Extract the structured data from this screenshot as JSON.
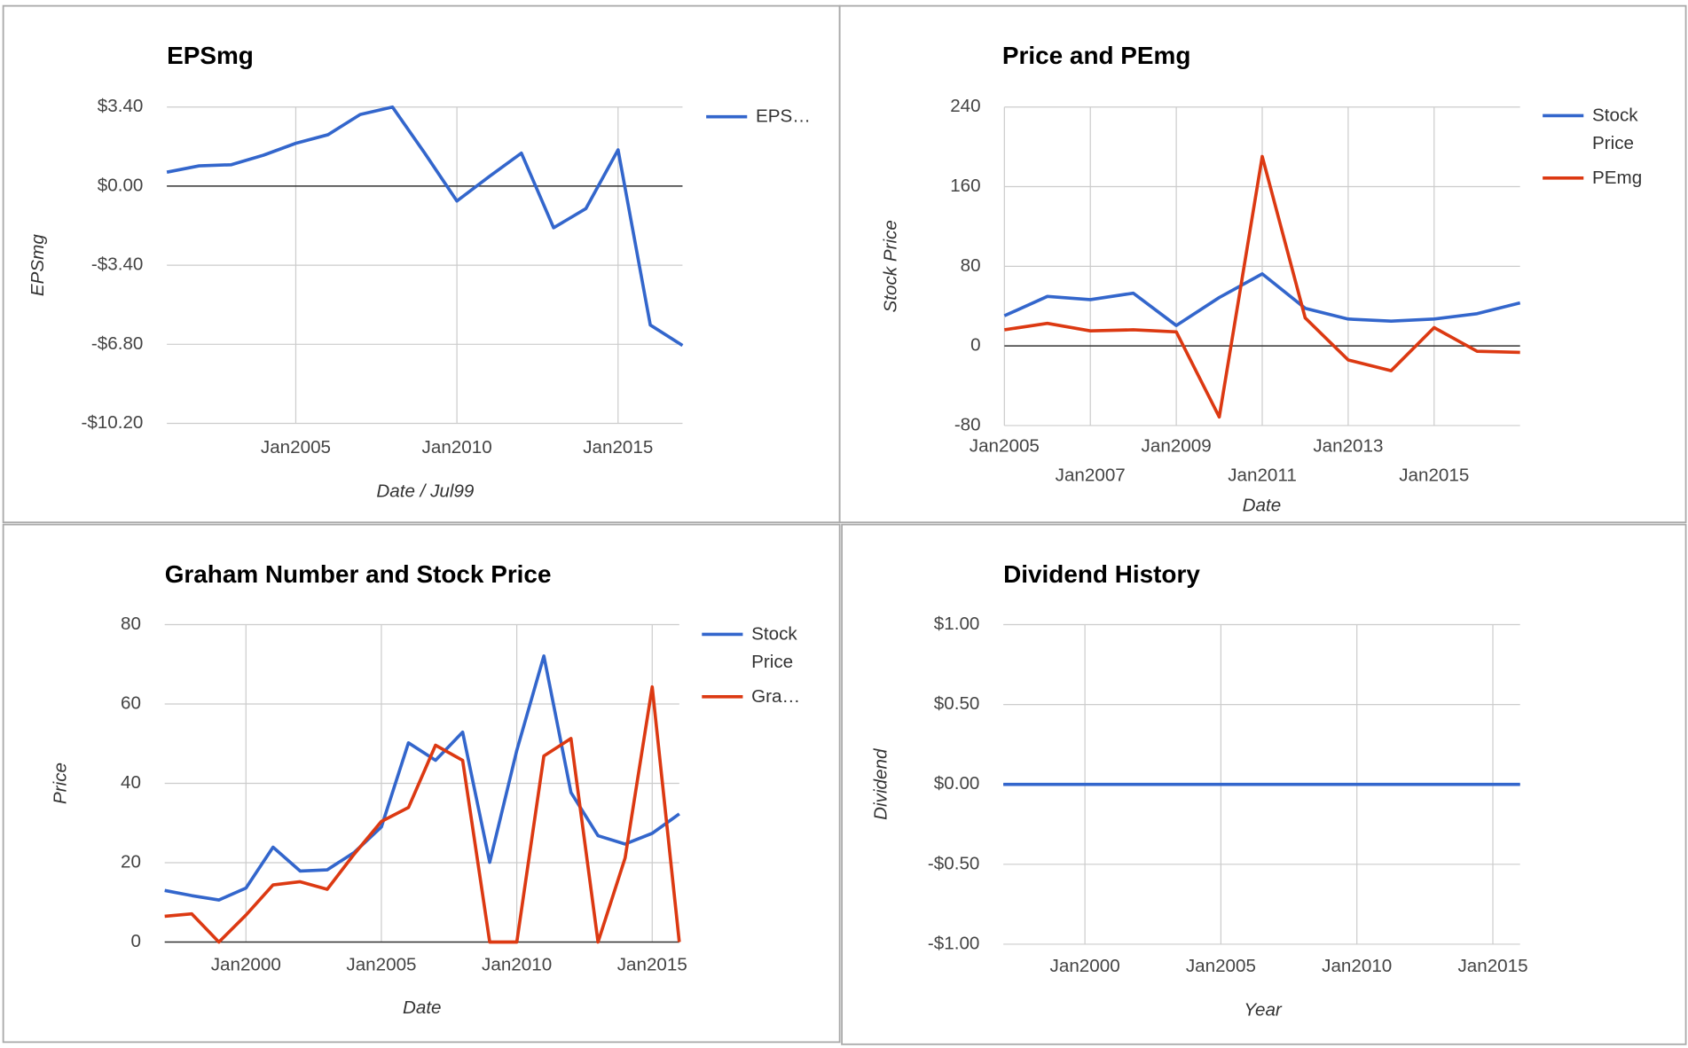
{
  "chart_data": [
    {
      "type": "line",
      "title": "EPSmg",
      "y_label": "EPSmg",
      "x_label": "Date / Jul99",
      "x": [
        2001,
        2002,
        2003,
        2004,
        2005,
        2006,
        2007,
        2008,
        2009,
        2010,
        2011,
        2012,
        2013,
        2014,
        2015,
        2016,
        2017
      ],
      "series": [
        {
          "name": "EPS…",
          "color": "#3366cc",
          "values": [
            0.6,
            0.87,
            0.92,
            1.33,
            1.84,
            2.21,
            3.08,
            3.4,
            1.42,
            -0.64,
            0.41,
            1.42,
            -1.79,
            -0.97,
            1.56,
            -5.97,
            -6.85
          ]
        }
      ],
      "xlim": [
        2001,
        2017
      ],
      "xticks": [
        {
          "value": 2005,
          "label": "Jan2005"
        },
        {
          "value": 2010,
          "label": "Jan2010"
        },
        {
          "value": 2015,
          "label": "Jan2015"
        }
      ],
      "ylim": [
        -10.2,
        3.4
      ],
      "yticks": [
        {
          "value": -10.2,
          "label": "-$10.20"
        },
        {
          "value": -6.8,
          "label": "-$6.80"
        },
        {
          "value": -3.4,
          "label": "-$3.40"
        },
        {
          "value": 0,
          "label": "$0.00"
        },
        {
          "value": 3.4,
          "label": "$3.40"
        }
      ],
      "grid": true,
      "legend": "right"
    },
    {
      "type": "line",
      "title": "Price and PEmg",
      "y_label": "Stock Price",
      "x_label": "Date",
      "x": [
        2005,
        2006,
        2007,
        2008,
        2009,
        2010,
        2011,
        2012,
        2013,
        2014,
        2015,
        2016,
        2017
      ],
      "series": [
        {
          "name": "Stock Price",
          "color": "#3366cc",
          "values": [
            30.3,
            49.7,
            46.5,
            53,
            20.5,
            48.6,
            72.4,
            37.8,
            27,
            24.9,
            27,
            32.4,
            43.2
          ]
        },
        {
          "name": "PEmg",
          "color": "#dc3912",
          "values": [
            16.2,
            22.7,
            15.1,
            16.2,
            14.1,
            -71.4,
            190.3,
            28.1,
            -14.1,
            -24.9,
            18.4,
            -5.4,
            -6.5
          ]
        }
      ],
      "xlim": [
        2005,
        2017
      ],
      "xticks": [
        {
          "value": 2005,
          "label": "Jan2005"
        },
        {
          "value": 2007,
          "label": "Jan2007"
        },
        {
          "value": 2009,
          "label": "Jan2009"
        },
        {
          "value": 2011,
          "label": "Jan2011"
        },
        {
          "value": 2013,
          "label": "Jan2013"
        },
        {
          "value": 2015,
          "label": "Jan2015"
        }
      ],
      "ylim": [
        -80,
        240
      ],
      "yticks": [
        -80,
        0,
        80,
        160,
        240
      ],
      "grid": true,
      "legend": "right"
    },
    {
      "type": "line",
      "title": "Graham Number and Stock Price",
      "y_label": "Price",
      "x_label": "Date",
      "x": [
        1997,
        1998,
        1999,
        2000,
        2001,
        2002,
        2003,
        2004,
        2005,
        2006,
        2007,
        2008,
        2009,
        2010,
        2011,
        2012,
        2013,
        2014,
        2015,
        2016
      ],
      "series": [
        {
          "name": "Stock Price",
          "color": "#3366cc",
          "values": [
            13,
            11.7,
            10.6,
            13.6,
            23.9,
            17.9,
            18.2,
            22.6,
            29,
            50.2,
            45.8,
            52.9,
            20.1,
            48.3,
            72.1,
            37.7,
            26.8,
            24.7,
            27.4,
            32.3
          ]
        },
        {
          "name": "Gra…",
          "color": "#dc3912",
          "values": [
            6.5,
            7.1,
            0,
            6.8,
            14.4,
            15.2,
            13.3,
            22.2,
            30.4,
            33.9,
            49.6,
            45.8,
            0,
            0,
            46.9,
            51.3,
            0,
            21.2,
            64.3,
            0
          ]
        }
      ],
      "xlim": [
        1997,
        2016
      ],
      "xticks": [
        {
          "value": 2000,
          "label": "Jan2000"
        },
        {
          "value": 2005,
          "label": "Jan2005"
        },
        {
          "value": 2010,
          "label": "Jan2010"
        },
        {
          "value": 2015,
          "label": "Jan2015"
        }
      ],
      "ylim": [
        0,
        80
      ],
      "yticks": [
        0,
        20,
        40,
        60,
        80
      ],
      "grid": true,
      "legend": "right"
    },
    {
      "type": "line",
      "title": "Dividend History",
      "y_label": "Dividend",
      "x_label": "Year",
      "x": [
        1997,
        1998,
        1999,
        2000,
        2001,
        2002,
        2003,
        2004,
        2005,
        2006,
        2007,
        2008,
        2009,
        2010,
        2011,
        2012,
        2013,
        2014,
        2015,
        2016
      ],
      "series": [
        {
          "color": "#3366cc",
          "values": [
            0,
            0,
            0,
            0,
            0,
            0,
            0,
            0,
            0,
            0,
            0,
            0,
            0,
            0,
            0,
            0,
            0,
            0,
            0,
            0
          ]
        }
      ],
      "xlim": [
        1997,
        2016
      ],
      "xticks": [
        {
          "value": 2000,
          "label": "Jan2000"
        },
        {
          "value": 2005,
          "label": "Jan2005"
        },
        {
          "value": 2010,
          "label": "Jan2010"
        },
        {
          "value": 2015,
          "label": "Jan2015"
        }
      ],
      "ylim": [
        -1,
        1
      ],
      "yticks": [
        {
          "value": -1,
          "label": "-$1.00"
        },
        {
          "value": -0.5,
          "label": "-$0.50"
        },
        {
          "value": 0,
          "label": "$0.00"
        },
        {
          "value": 0.5,
          "label": "$0.50"
        },
        {
          "value": 1,
          "label": "$1.00"
        }
      ],
      "grid": true
    }
  ]
}
